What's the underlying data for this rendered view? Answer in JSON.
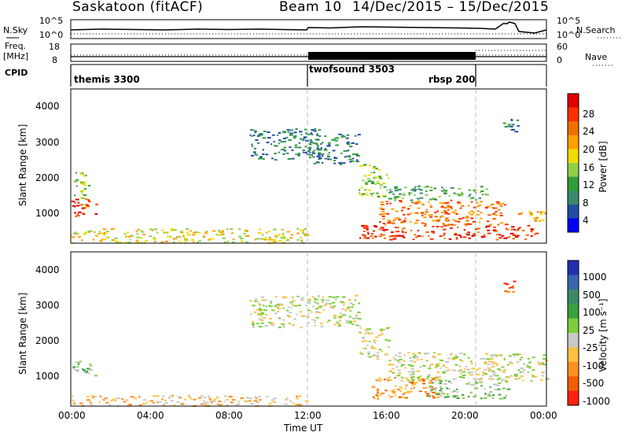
{
  "header": {
    "station": "Saskatoon (fitACF)",
    "beam": "Beam 10",
    "date_range": "14/Dec/2015 – 15/Dec/2015"
  },
  "strips": {
    "nsky_label": "N.Sky",
    "nsky_ticks": [
      "10^5",
      "10^0"
    ],
    "nsearch_label": "N.Search",
    "nsearch_ticks": [
      "10^5",
      "10^0"
    ],
    "freq_label": "Freq.",
    "freq_unit": "[MHz]",
    "freq_ticks": [
      "18",
      "8"
    ],
    "nave_label": "Nave",
    "nave_ticks": [
      "60",
      "0"
    ],
    "cpid_label": "CPID",
    "cpid_segments": [
      {
        "name": "themis 3300",
        "start_hour": 0
      },
      {
        "name": "twofsound 3503",
        "start_hour": 12
      },
      {
        "name": "rbsp 200",
        "start_hour": 20.5
      }
    ]
  },
  "power_panel": {
    "ylabel": "Slant Range [km]",
    "yticks": [
      "4000",
      "3000",
      "2000",
      "1000"
    ],
    "colorbar_label": "Power [dB]",
    "colorbar_ticks": [
      "28",
      "24",
      "20",
      "16",
      "12",
      "8",
      "4"
    ],
    "colors": [
      "#0000ff",
      "#1f4ea3",
      "#3a8a6a",
      "#2e9e3a",
      "#8fd04a",
      "#f0dc00",
      "#ffa000",
      "#f07000",
      "#ff3000",
      "#e00000"
    ]
  },
  "velocity_panel": {
    "ylabel": "Slant Range [km]",
    "yticks": [
      "4000",
      "3000",
      "2000",
      "1000"
    ],
    "colorbar_label": "Velocity [m s⁻¹]",
    "colorbar_ticks": [
      "1000",
      "500",
      "100",
      "25",
      "-25",
      "-100",
      "-500",
      "-1000"
    ],
    "colors": [
      "#2030b0",
      "#3a66b0",
      "#3a8a6a",
      "#3aa040",
      "#7ccf3a",
      "#c8c8c8",
      "#ffc040",
      "#ff9020",
      "#f06000",
      "#ff2010"
    ],
    "xticks": [
      "00:00",
      "04:00",
      "08:00",
      "12:00",
      "16:00",
      "20:00",
      "00:00"
    ],
    "xlabel": "Time UT"
  },
  "chart_data": {
    "type": "heatmap",
    "title": "Saskatoon (fitACF)  Beam 10  14/Dec/2015 – 15/Dec/2015",
    "xlabel": "Time UT",
    "ylabel": "Slant Range [km]",
    "x_range_hours": [
      0,
      24
    ],
    "y_range_km": [
      180,
      4500
    ],
    "power_db_range": [
      4,
      30
    ],
    "velocity_range_ms": [
      -1000,
      1000
    ],
    "power_regions": [
      {
        "t0": 0.0,
        "t1": 1.3,
        "r0": 950,
        "r1": 1450,
        "level": 8
      },
      {
        "t0": 0.1,
        "t1": 0.9,
        "r0": 1450,
        "r1": 2200,
        "level": 4
      },
      {
        "t0": 0.0,
        "t1": 12.0,
        "r0": 200,
        "r1": 600,
        "level": 5
      },
      {
        "t0": 9.0,
        "t1": 12.5,
        "r0": 2500,
        "r1": 3400,
        "level": 2
      },
      {
        "t0": 12.0,
        "t1": 14.5,
        "r0": 2400,
        "r1": 3250,
        "level": 2
      },
      {
        "t0": 14.5,
        "t1": 16.0,
        "r0": 1500,
        "r1": 2400,
        "level": 4
      },
      {
        "t0": 15.5,
        "t1": 22.0,
        "r0": 700,
        "r1": 1400,
        "level": 7
      },
      {
        "t0": 14.5,
        "t1": 23.5,
        "r0": 300,
        "r1": 700,
        "level": 8
      },
      {
        "t0": 16.0,
        "t1": 21.0,
        "r0": 1400,
        "r1": 1800,
        "level": 3
      },
      {
        "t0": 22.5,
        "t1": 24.0,
        "r0": 800,
        "r1": 1100,
        "level": 6
      },
      {
        "t0": 21.8,
        "t1": 22.6,
        "r0": 3300,
        "r1": 3700,
        "level": 2
      }
    ],
    "velocity_regions": [
      {
        "t0": 0.0,
        "t1": 1.2,
        "r0": 1000,
        "r1": 1450,
        "level": 4
      },
      {
        "t0": 0.0,
        "t1": 12.0,
        "r0": 200,
        "r1": 500,
        "level": 6
      },
      {
        "t0": 9.0,
        "t1": 14.5,
        "r0": 2400,
        "r1": 3300,
        "level": 5
      },
      {
        "t0": 14.5,
        "t1": 16.0,
        "r0": 1500,
        "r1": 2400,
        "level": 5
      },
      {
        "t0": 15.0,
        "t1": 18.5,
        "r0": 400,
        "r1": 1000,
        "level": 7
      },
      {
        "t0": 16.0,
        "t1": 24.0,
        "r0": 900,
        "r1": 1700,
        "level": 5
      },
      {
        "t0": 18.0,
        "t1": 22.0,
        "r0": 400,
        "r1": 900,
        "level": 4
      },
      {
        "t0": 21.8,
        "t1": 22.5,
        "r0": 3300,
        "r1": 3700,
        "level": 8
      }
    ]
  }
}
